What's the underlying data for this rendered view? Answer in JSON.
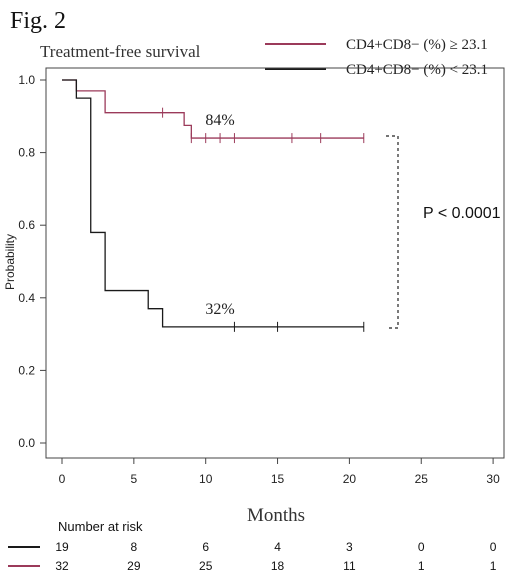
{
  "figure_label": "Fig. 2",
  "chart_data": {
    "type": "line",
    "subtype": "kaplan-meier",
    "title": "Treatment-free survival",
    "xlabel": "Months",
    "ylabel": "Probability",
    "xlim": [
      0,
      30
    ],
    "ylim": [
      0,
      1
    ],
    "x_ticks": [
      0,
      5,
      10,
      15,
      20,
      25,
      30
    ],
    "y_ticks": [
      0.0,
      0.2,
      0.4,
      0.6,
      0.8,
      1.0
    ],
    "grid": false,
    "legend_position": "top-right",
    "series": [
      {
        "name": "CD4+CD8− (%) ≥ 23.1",
        "color": "#9b3a5a",
        "steps": [
          [
            0,
            1.0
          ],
          [
            1,
            0.97
          ],
          [
            3,
            0.91
          ],
          [
            8,
            0.91
          ],
          [
            8.5,
            0.875
          ],
          [
            9,
            0.84
          ],
          [
            21,
            0.84
          ]
        ],
        "censor_x": [
          7,
          9,
          10,
          11,
          12,
          16,
          18,
          21
        ],
        "annotation": "84%",
        "annotation_x": 11
      },
      {
        "name": "CD4+CD8− (%) < 23.1",
        "color": "#1a1a1a",
        "steps": [
          [
            0,
            1.0
          ],
          [
            1,
            0.95
          ],
          [
            2,
            0.58
          ],
          [
            3,
            0.42
          ],
          [
            6,
            0.37
          ],
          [
            7,
            0.32
          ],
          [
            21,
            0.32
          ]
        ],
        "censor_x": [
          12,
          15,
          21
        ],
        "annotation": "32%",
        "annotation_x": 11
      }
    ],
    "annotations": {
      "p_value": "P < 0.0001"
    },
    "risk_table": {
      "label": "Number at risk",
      "time_points": [
        0,
        5,
        10,
        15,
        20,
        25,
        30
      ],
      "rows": [
        {
          "color": "#1a1a1a",
          "values": [
            "19",
            "8",
            "6",
            "4",
            "3",
            "0",
            "0"
          ]
        },
        {
          "color": "#9b3a5a",
          "values": [
            "32",
            "29",
            "25",
            "18",
            "11",
            "1",
            "1"
          ]
        }
      ]
    }
  }
}
